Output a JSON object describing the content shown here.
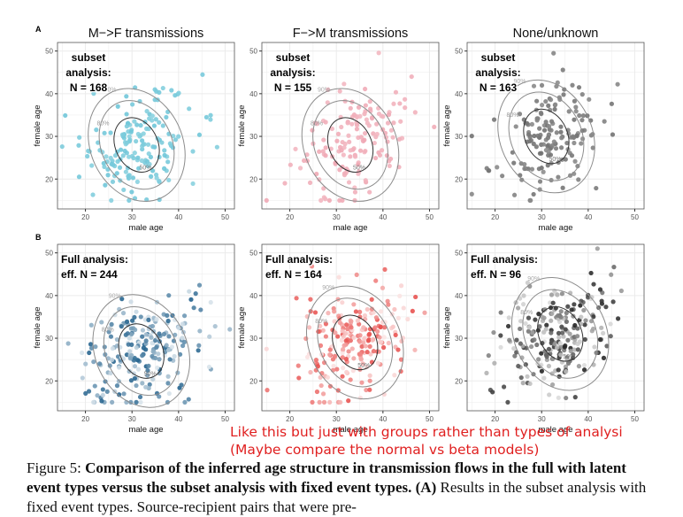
{
  "figure": {
    "row_labels": [
      "A",
      "B"
    ],
    "col_titles": [
      "M−>F transmissions",
      "F−>M transmissions",
      "None/unknown"
    ],
    "xlabel": "male age",
    "ylabel": "female age",
    "x_ticks": [
      20,
      30,
      40,
      50
    ],
    "y_ticks": [
      20,
      30,
      40,
      50
    ],
    "contour_labels": [
      "50%",
      "80%",
      "90%"
    ]
  },
  "chart_data": [
    {
      "type": "scatter",
      "row": "A",
      "title": "M−>F transmissions",
      "annotation": [
        "subset",
        "analysis:",
        "N = 168"
      ],
      "xlim": [
        14,
        52
      ],
      "ylim": [
        13,
        52
      ],
      "color": "#6ec6d8",
      "n_points": 168,
      "center": [
        31,
        28
      ],
      "spread": [
        6,
        6
      ]
    },
    {
      "type": "scatter",
      "row": "A",
      "title": "F−>M transmissions",
      "annotation": [
        "subset",
        "analysis:",
        "N = 155"
      ],
      "xlim": [
        14,
        52
      ],
      "ylim": [
        13,
        52
      ],
      "color": "#f0a8b4",
      "n_points": 155,
      "center": [
        33,
        28
      ],
      "spread": [
        6,
        7
      ]
    },
    {
      "type": "scatter",
      "row": "A",
      "title": "None/unknown",
      "annotation": [
        "subset",
        "analysis:",
        "N = 163"
      ],
      "xlim": [
        14,
        52
      ],
      "ylim": [
        13,
        52
      ],
      "color": "#707070",
      "n_points": 163,
      "center": [
        31,
        30
      ],
      "spread": [
        6,
        6
      ]
    },
    {
      "type": "scatter",
      "row": "B",
      "title": "",
      "annotation": [
        "Full analysis:",
        "eff. N = 244"
      ],
      "xlim": [
        14,
        52
      ],
      "ylim": [
        13,
        52
      ],
      "color": "#1f5f8b",
      "n_points": 230,
      "center": [
        32,
        27
      ],
      "spread": [
        7,
        6
      ]
    },
    {
      "type": "scatter",
      "row": "B",
      "title": "",
      "annotation": [
        "Full analysis:",
        "eff. N = 164"
      ],
      "xlim": [
        14,
        52
      ],
      "ylim": [
        13,
        52
      ],
      "color": "#e8504e",
      "n_points": 220,
      "center": [
        34,
        29
      ],
      "spread": [
        6,
        6
      ]
    },
    {
      "type": "scatter",
      "row": "B",
      "title": "",
      "annotation": [
        "Full analysis:",
        "eff. N = 96"
      ],
      "xlim": [
        14,
        52
      ],
      "ylim": [
        13,
        52
      ],
      "color": "#222222",
      "n_points": 230,
      "center": [
        34,
        31
      ],
      "spread": [
        6,
        6
      ]
    }
  ],
  "note": "Like this but just with groups rather than types of analysi\n(Maybe compare the normal vs beta models)",
  "caption": {
    "prefix": "Figure 5: ",
    "bold": "Comparison of the inferred age structure in transmission flows in the full with latent event types versus the subset analysis with fixed event types. (A)",
    "rest": " Results in the subset analysis with fixed event types. Source-recipient pairs that were pre-"
  },
  "colors": {
    "grid": "#ebebeb",
    "axis": "#333333",
    "contour": "#8c8c8c",
    "note": "#e02020"
  }
}
